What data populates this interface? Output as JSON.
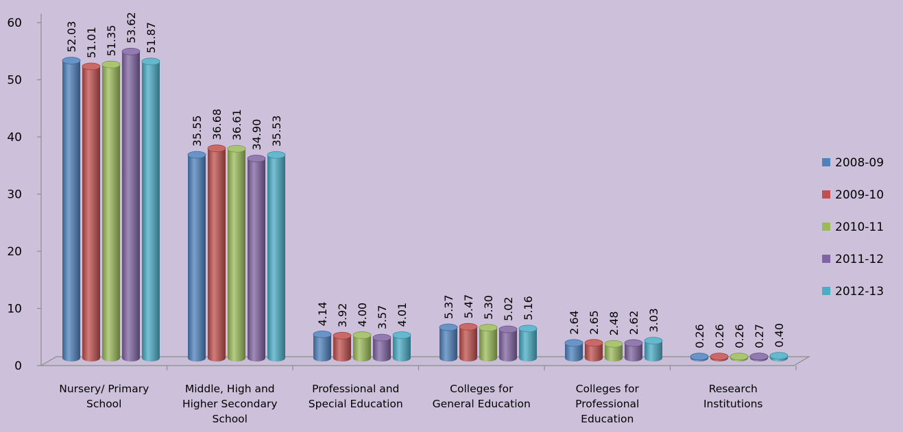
{
  "chart_data": {
    "type": "bar",
    "categories": [
      [
        "Nursery/ Primary",
        "School"
      ],
      [
        "Middle, High and",
        "Higher  Secondary",
        "School"
      ],
      [
        "Professional and",
        "Special Education"
      ],
      [
        "Colleges for",
        "General Education"
      ],
      [
        "Colleges for",
        "Professional",
        "Education"
      ],
      [
        "Research",
        "Institutions"
      ]
    ],
    "series": [
      {
        "name": "2008-09",
        "color": "#4f81bd",
        "values": [
          52.03,
          35.55,
          4.14,
          5.37,
          2.64,
          0.26
        ],
        "labels": [
          "52.03",
          "35.55",
          "4.14",
          "5.37",
          "2.64",
          "0.26"
        ]
      },
      {
        "name": "2009-10",
        "color": "#c0504d",
        "values": [
          51.01,
          36.68,
          3.92,
          5.47,
          2.65,
          0.26
        ],
        "labels": [
          "51.01",
          "36.68",
          "3.92",
          "5.47",
          "2.65",
          "0.26"
        ]
      },
      {
        "name": "2010-11",
        "color": "#9bbb59",
        "values": [
          51.35,
          36.61,
          4.0,
          5.3,
          2.48,
          0.26
        ],
        "labels": [
          "51.35",
          "36.61",
          "4.00",
          "5.30",
          "2.48",
          "0.26"
        ]
      },
      {
        "name": "2011-12",
        "color": "#8064a2",
        "values": [
          53.62,
          34.9,
          3.57,
          5.02,
          2.62,
          0.27
        ],
        "labels": [
          "53.62",
          "34.90",
          "3.57",
          "5.02",
          "2.62",
          "0.27"
        ]
      },
      {
        "name": "2012-13",
        "color": "#4bacc6",
        "values": [
          51.87,
          35.53,
          4.01,
          5.16,
          3.03,
          0.4
        ],
        "labels": [
          "51.87",
          "35.53",
          "4.01",
          "5.16",
          "3.03",
          "0.40"
        ]
      }
    ],
    "yticks": [
      "0",
      "10",
      "20",
      "30",
      "40",
      "50",
      "60"
    ],
    "ylim": [
      0,
      60
    ],
    "title": "",
    "xlabel": "",
    "ylabel": "",
    "grid": false,
    "legend_position": "right",
    "style": "3d-cylinder"
  }
}
